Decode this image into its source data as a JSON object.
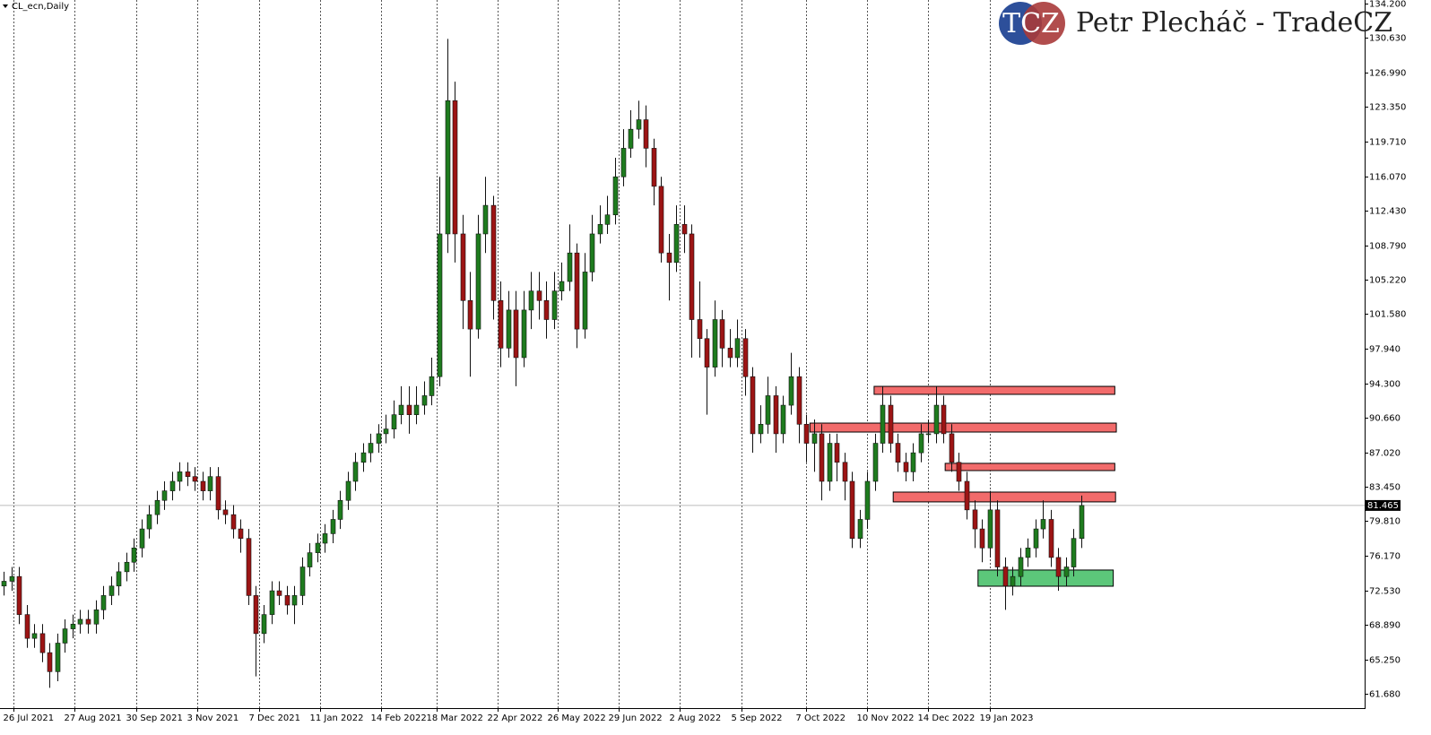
{
  "chart_data": {
    "type": "candlestick",
    "title": "CL_ecn,Daily",
    "logo": "TCZ",
    "brand": "Petr Plecháč - TradeCZ",
    "up_color": "#1e7b1e",
    "down_color": "#9c1414",
    "grid": true,
    "xlim": [
      -0.5,
      178.1
    ],
    "xticks": [
      {
        "value": 1.3,
        "label": "26 Jul 2021"
      },
      {
        "value": 9.2,
        "label": "27 Aug 2021"
      },
      {
        "value": 17.3,
        "label": "30 Sep 2021"
      },
      {
        "value": 25.3,
        "label": "3 Nov 2021"
      },
      {
        "value": 33.4,
        "label": "7 Dec 2021"
      },
      {
        "value": 41.4,
        "label": "11 Jan 2022"
      },
      {
        "value": 49.4,
        "label": "14 Feb 2022"
      },
      {
        "value": 56.7,
        "label": "18 Mar 2022"
      },
      {
        "value": 64.6,
        "label": "22 Apr 2022"
      },
      {
        "value": 72.5,
        "label": "26 May 2022"
      },
      {
        "value": 80.5,
        "label": "29 Jun 2022"
      },
      {
        "value": 88.5,
        "label": "2 Aug 2022"
      },
      {
        "value": 96.5,
        "label": "5 Sep 2022"
      },
      {
        "value": 105.0,
        "label": "7 Oct 2022"
      },
      {
        "value": 113.0,
        "label": "10 Nov 2022"
      },
      {
        "value": 121.0,
        "label": "14 Dec 2022"
      },
      {
        "value": 129.0,
        "label": "19 Jan 2023"
      }
    ],
    "ylim": [
      60.17,
      134.58
    ],
    "yticks": [
      {
        "value": 134.2,
        "label": "134.200"
      },
      {
        "value": 130.63,
        "label": "130.630"
      },
      {
        "value": 126.99,
        "label": "126.990"
      },
      {
        "value": 123.35,
        "label": "123.350"
      },
      {
        "value": 119.71,
        "label": "119.710"
      },
      {
        "value": 116.07,
        "label": "116.070"
      },
      {
        "value": 112.43,
        "label": "112.430"
      },
      {
        "value": 108.79,
        "label": "108.790"
      },
      {
        "value": 105.22,
        "label": "105.220"
      },
      {
        "value": 101.58,
        "label": "101.580"
      },
      {
        "value": 97.94,
        "label": "97.940"
      },
      {
        "value": 94.3,
        "label": "94.300"
      },
      {
        "value": 90.66,
        "label": "90.660"
      },
      {
        "value": 87.02,
        "label": "87.020"
      },
      {
        "value": 83.45,
        "label": "83.450"
      },
      {
        "value": 79.81,
        "label": "79.810"
      },
      {
        "value": 76.17,
        "label": "76.170"
      },
      {
        "value": 72.53,
        "label": "72.530"
      },
      {
        "value": 68.89,
        "label": "68.890"
      },
      {
        "value": 65.25,
        "label": "65.250"
      },
      {
        "value": 61.68,
        "label": "61.680"
      }
    ],
    "open": [
      73,
      73.5,
      74,
      70,
      67.5,
      68,
      66,
      64,
      67,
      68.5,
      69,
      69.5,
      69,
      70.5,
      72,
      73,
      74.5,
      75.5,
      77,
      79,
      80.5,
      82,
      83,
      84,
      85,
      84.5,
      84,
      83,
      84.5,
      81,
      80.5,
      79,
      78,
      72,
      68,
      70,
      72.5,
      72,
      71,
      72,
      75,
      76.5,
      77.5,
      78.5,
      80,
      82,
      84,
      86,
      87,
      88,
      89,
      89.5,
      91,
      92,
      91,
      92,
      93,
      95,
      110,
      124,
      110,
      103,
      100,
      110,
      113,
      103,
      98,
      102,
      97,
      102,
      104,
      103,
      101,
      104,
      105,
      108,
      100,
      106,
      110,
      111,
      112,
      116,
      119,
      121,
      122,
      119,
      115,
      108,
      107,
      111,
      110,
      101,
      99,
      96,
      101,
      98,
      97,
      99,
      95,
      89,
      90,
      93,
      89,
      92,
      95,
      90,
      88,
      89,
      84,
      88,
      86,
      84,
      78,
      80,
      84,
      88,
      92,
      88,
      86,
      85,
      87,
      89,
      89,
      92,
      89,
      86,
      84,
      81,
      79,
      77,
      81,
      75,
      73,
      74,
      76,
      77,
      79,
      80,
      76,
      74,
      75,
      78
    ],
    "high": [
      74.5,
      75,
      75,
      71,
      69,
      69,
      67,
      68,
      69.5,
      70,
      70.5,
      70.5,
      71.5,
      73,
      74,
      75.5,
      76.5,
      78,
      80,
      81.5,
      83,
      84,
      85,
      86,
      86,
      85.5,
      85,
      85.5,
      85.5,
      82,
      81.5,
      80,
      79,
      73,
      71,
      73.5,
      73.5,
      73,
      73,
      76,
      77.5,
      78.5,
      79.5,
      81,
      83,
      85,
      87,
      88,
      89,
      90,
      91,
      92.5,
      94,
      94,
      94,
      94.5,
      97,
      116,
      130.5,
      126,
      112,
      106,
      112,
      116,
      114,
      105,
      104,
      104,
      104,
      106,
      106,
      105,
      106,
      107,
      111,
      109,
      108,
      112,
      113,
      114,
      118,
      121,
      123,
      124,
      123.5,
      120,
      116,
      110,
      113,
      113,
      111,
      105,
      100,
      103,
      102,
      100,
      101,
      100,
      96,
      92,
      95,
      94,
      93,
      97.5,
      96,
      91,
      90.5,
      90,
      89,
      89,
      87,
      85,
      81,
      85,
      89,
      94,
      93,
      89,
      87,
      88,
      90,
      90.5,
      94,
      93,
      90,
      87,
      85,
      82,
      80,
      83,
      82,
      76,
      75,
      77,
      78,
      80,
      82,
      81,
      77,
      76,
      79,
      82.5
    ],
    "low": [
      72,
      72.5,
      69,
      66.5,
      66.5,
      65,
      62.3,
      63,
      66,
      67.5,
      68,
      68,
      68,
      69.5,
      71,
      72,
      73.5,
      74.5,
      76,
      78,
      79.5,
      81,
      82,
      83,
      83.5,
      83,
      82,
      82,
      80,
      79.5,
      78,
      76.5,
      71,
      63.5,
      67,
      69,
      71,
      70,
      69,
      71,
      74,
      75.5,
      76.5,
      77.5,
      79,
      81,
      83,
      85,
      86,
      87,
      88,
      88.5,
      90,
      89,
      90,
      91,
      92,
      94,
      108,
      107,
      100,
      95,
      99,
      108,
      101,
      96,
      97,
      94,
      96,
      100,
      101,
      99,
      100,
      103,
      104,
      98,
      99,
      105,
      109,
      110,
      111,
      115,
      118,
      120,
      117,
      113,
      107,
      103,
      106,
      108,
      97,
      97,
      91,
      95,
      96,
      96,
      96,
      93,
      87,
      88,
      89,
      87,
      88,
      91,
      88,
      86,
      85,
      82,
      83,
      84,
      82,
      77,
      77,
      79,
      83,
      87,
      87,
      85,
      84,
      84,
      86,
      88,
      88,
      88,
      85,
      83,
      80,
      77,
      75.5,
      76,
      74,
      70.5,
      72,
      73,
      75,
      76,
      78,
      75,
      72.5,
      73,
      74,
      77
    ],
    "close": [
      73.5,
      74,
      70,
      67.5,
      68,
      66,
      64,
      67,
      68.5,
      69,
      69.5,
      69,
      70.5,
      72,
      73,
      74.5,
      75.5,
      77,
      79,
      80.5,
      82,
      83,
      84,
      85,
      84.5,
      84,
      83,
      84.5,
      81,
      80.5,
      79,
      78,
      72,
      68,
      70,
      72.5,
      72,
      71,
      72,
      75,
      76.5,
      77.5,
      78.5,
      80,
      82,
      84,
      86,
      87,
      88,
      89,
      89.5,
      91,
      92,
      91,
      92,
      93,
      95,
      110,
      124,
      110,
      103,
      100,
      110,
      113,
      103,
      98,
      102,
      97,
      102,
      104,
      103,
      101,
      104,
      105,
      108,
      100,
      106,
      110,
      111,
      112,
      116,
      119,
      121,
      122,
      119,
      115,
      108,
      107,
      111,
      110,
      101,
      99,
      96,
      101,
      98,
      97,
      99,
      95,
      89,
      90,
      93,
      89,
      92,
      95,
      90,
      88,
      89,
      84,
      88,
      86,
      84,
      78,
      80,
      84,
      88,
      92,
      88,
      86,
      85,
      87,
      89,
      89,
      92,
      89,
      86,
      84,
      81,
      79,
      77,
      81,
      75,
      73,
      74,
      76,
      77,
      79,
      80,
      76,
      74,
      75,
      78,
      81.465
    ],
    "zones": [
      {
        "x": [
          113.9,
          145.4
        ],
        "y": [
          93.14,
          93.98
        ],
        "color": "#f26b6b"
      },
      {
        "x": [
          105.5,
          145.6
        ],
        "y": [
          89.18,
          90.12
        ],
        "color": "#f26b6b"
      },
      {
        "x": [
          123.2,
          145.4
        ],
        "y": [
          85.13,
          85.89
        ],
        "color": "#f26b6b"
      },
      {
        "x": [
          116.4,
          145.5
        ],
        "y": [
          81.84,
          82.87
        ],
        "color": "#f26b6b"
      },
      {
        "x": [
          127.5,
          145.2
        ],
        "y": [
          72.98,
          74.68
        ],
        "color": "#5cc77a"
      }
    ],
    "price_line": 81.465
  }
}
